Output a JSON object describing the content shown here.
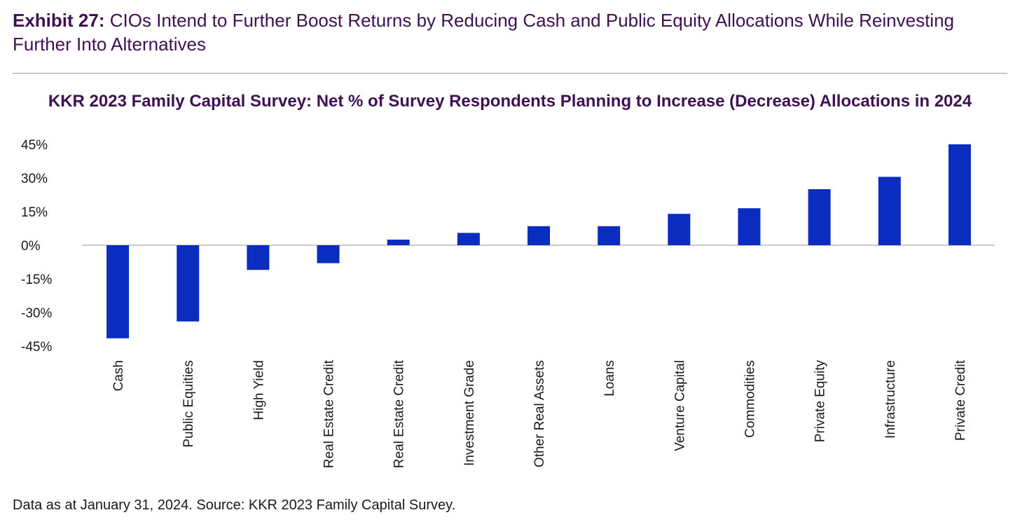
{
  "header": {
    "exhibit_label": "Exhibit 27:",
    "exhibit_title": "CIOs Intend to Further Boost Returns by Reducing Cash and Public Equity Allocations While Reinvesting Further Into Alternatives"
  },
  "footer": {
    "source": "Data as at January 31, 2024. Source: KKR 2023 Family Capital Survey."
  },
  "colors": {
    "bar": "#0a2dbf",
    "title": "#3d1152",
    "axis": "#cccccc",
    "text": "#1a1a1a"
  },
  "chart_data": {
    "type": "bar",
    "title": "KKR 2023 Family Capital Survey: Net % of Survey Respondents Planning to Increase (Decrease) Allocations in 2024",
    "xlabel": "",
    "ylabel": "",
    "ylim": [
      -45,
      45
    ],
    "yticks": [
      45,
      30,
      15,
      0,
      -15,
      -30,
      -45
    ],
    "ytick_labels": [
      "45%",
      "30%",
      "15%",
      "0%",
      "-15%",
      "-30%",
      "-45%"
    ],
    "grid": false,
    "legend": "none",
    "categories": [
      "Cash",
      "Public Equities",
      "High Yield",
      "Real Estate Credit",
      "Real Estate Credit",
      "Investment Grade",
      "Other Real Assets",
      "Loans",
      "Venture Capital",
      "Commodities",
      "Private Equity",
      "Infrastructure",
      "Private Credit"
    ],
    "values": [
      -41.5,
      -34,
      -11,
      -8,
      2.5,
      5.5,
      8.5,
      8.5,
      14,
      16.5,
      25,
      30.5,
      45
    ]
  }
}
